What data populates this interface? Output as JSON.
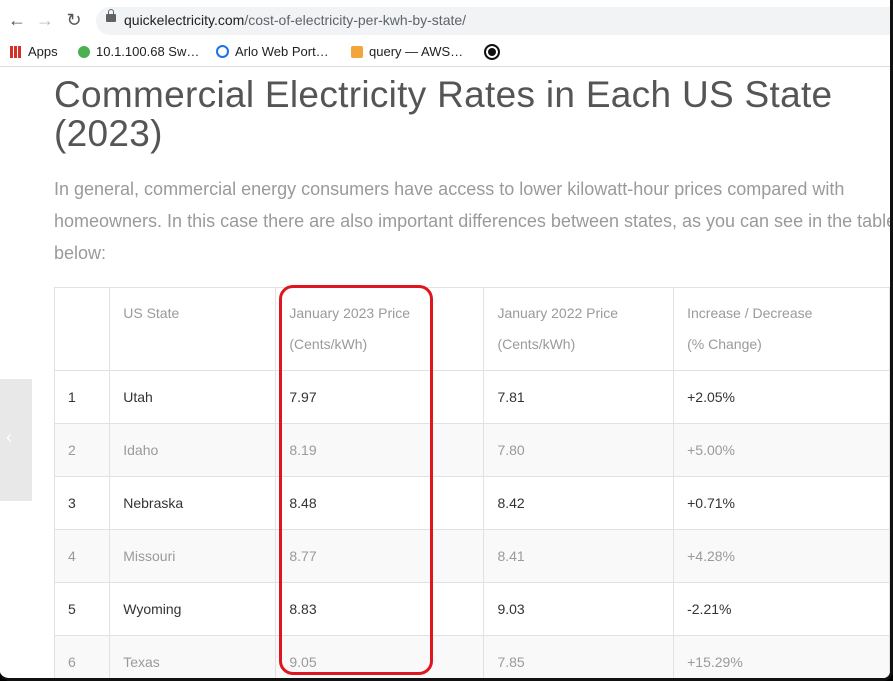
{
  "browser": {
    "url_domain": "quickelectricity.com",
    "url_path": "/cost-of-electricity-per-kwh-by-state/",
    "bookmarks": [
      {
        "label": "Apps",
        "icon": "apps-grid-icon"
      },
      {
        "label": "10.1.100.68 Sw…",
        "icon": "green-globe-icon"
      },
      {
        "label": "Arlo Web Port…",
        "icon": "arlo-icon"
      },
      {
        "label": "query — AWS…",
        "icon": "aws-box-icon"
      },
      {
        "label": "",
        "icon": "github-icon"
      }
    ]
  },
  "article": {
    "title": "Commercial Electricity Rates in Each US State (2023)",
    "intro": "In general, commercial energy consumers have access to lower kilowatt-hour prices compared with homeowners. In this case there are also important differences between states, as you can see in the table below:"
  },
  "table": {
    "headers": {
      "rank": "",
      "state": "US State",
      "jan2023_line1": "January 2023 Price",
      "jan2023_line2": "(Cents/kWh)",
      "jan2022_line1": "January 2022 Price",
      "jan2022_line2": "(Cents/kWh)",
      "change_line1": "Increase / Decrease",
      "change_line2": "(% Change)"
    },
    "rows": [
      {
        "rank": "1",
        "state": "Utah",
        "jan2023": "7.97",
        "jan2022": "7.81",
        "change": "+2.05%"
      },
      {
        "rank": "2",
        "state": "Idaho",
        "jan2023": "8.19",
        "jan2022": "7.80",
        "change": "+5.00%"
      },
      {
        "rank": "3",
        "state": "Nebraska",
        "jan2023": "8.48",
        "jan2022": "8.42",
        "change": "+0.71%"
      },
      {
        "rank": "4",
        "state": "Missouri",
        "jan2023": "8.77",
        "jan2022": "8.41",
        "change": "+4.28%"
      },
      {
        "rank": "5",
        "state": "Wyoming",
        "jan2023": "8.83",
        "jan2022": "9.03",
        "change": "-2.21%"
      },
      {
        "rank": "6",
        "state": "Texas",
        "jan2023": "9.05",
        "jan2022": "7.85",
        "change": "+15.29%"
      }
    ]
  },
  "sidetab": {
    "glyph": "‹"
  },
  "colors": {
    "highlight": "#e0161f",
    "title": "#555555",
    "muted": "#9a9a9a"
  }
}
